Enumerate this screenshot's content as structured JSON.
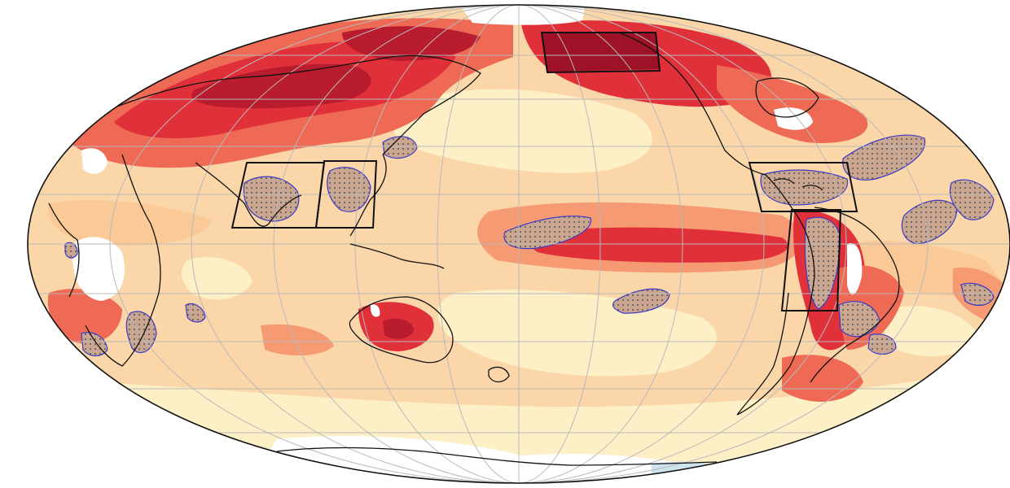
{
  "map": {
    "projection": "mollweide",
    "central_meridian": "180",
    "graticule": true,
    "palette": {
      "background": "#ffffff",
      "base_ocean": "#fbd6a9",
      "pale": "#fdefc6",
      "light": "#fbc995",
      "mid": "#f59a73",
      "warm": "#ef6a55",
      "hot": "#e0313a",
      "deep": "#b81c2e",
      "darkest": "#9e1227",
      "cool": "#cfe3ef",
      "coast": "#111111",
      "grid": "#b9b9b9",
      "stipple_outline": "#3b3bc8",
      "stipple_dot": "#555555",
      "box": "#111111"
    },
    "feature_names": [
      "eurasia-north-warming",
      "arctic-dark-warming",
      "equatorial-pacific-warm-tongue",
      "australia-interior-warming",
      "atlantic-tropical-warming",
      "south-america-west-warming",
      "antarctic-coast"
    ],
    "boxed_regions": [
      "box-north-pacific-arctic",
      "box-south-asia",
      "box-southeast-asia",
      "box-caribbean",
      "box-south-america-west"
    ]
  }
}
